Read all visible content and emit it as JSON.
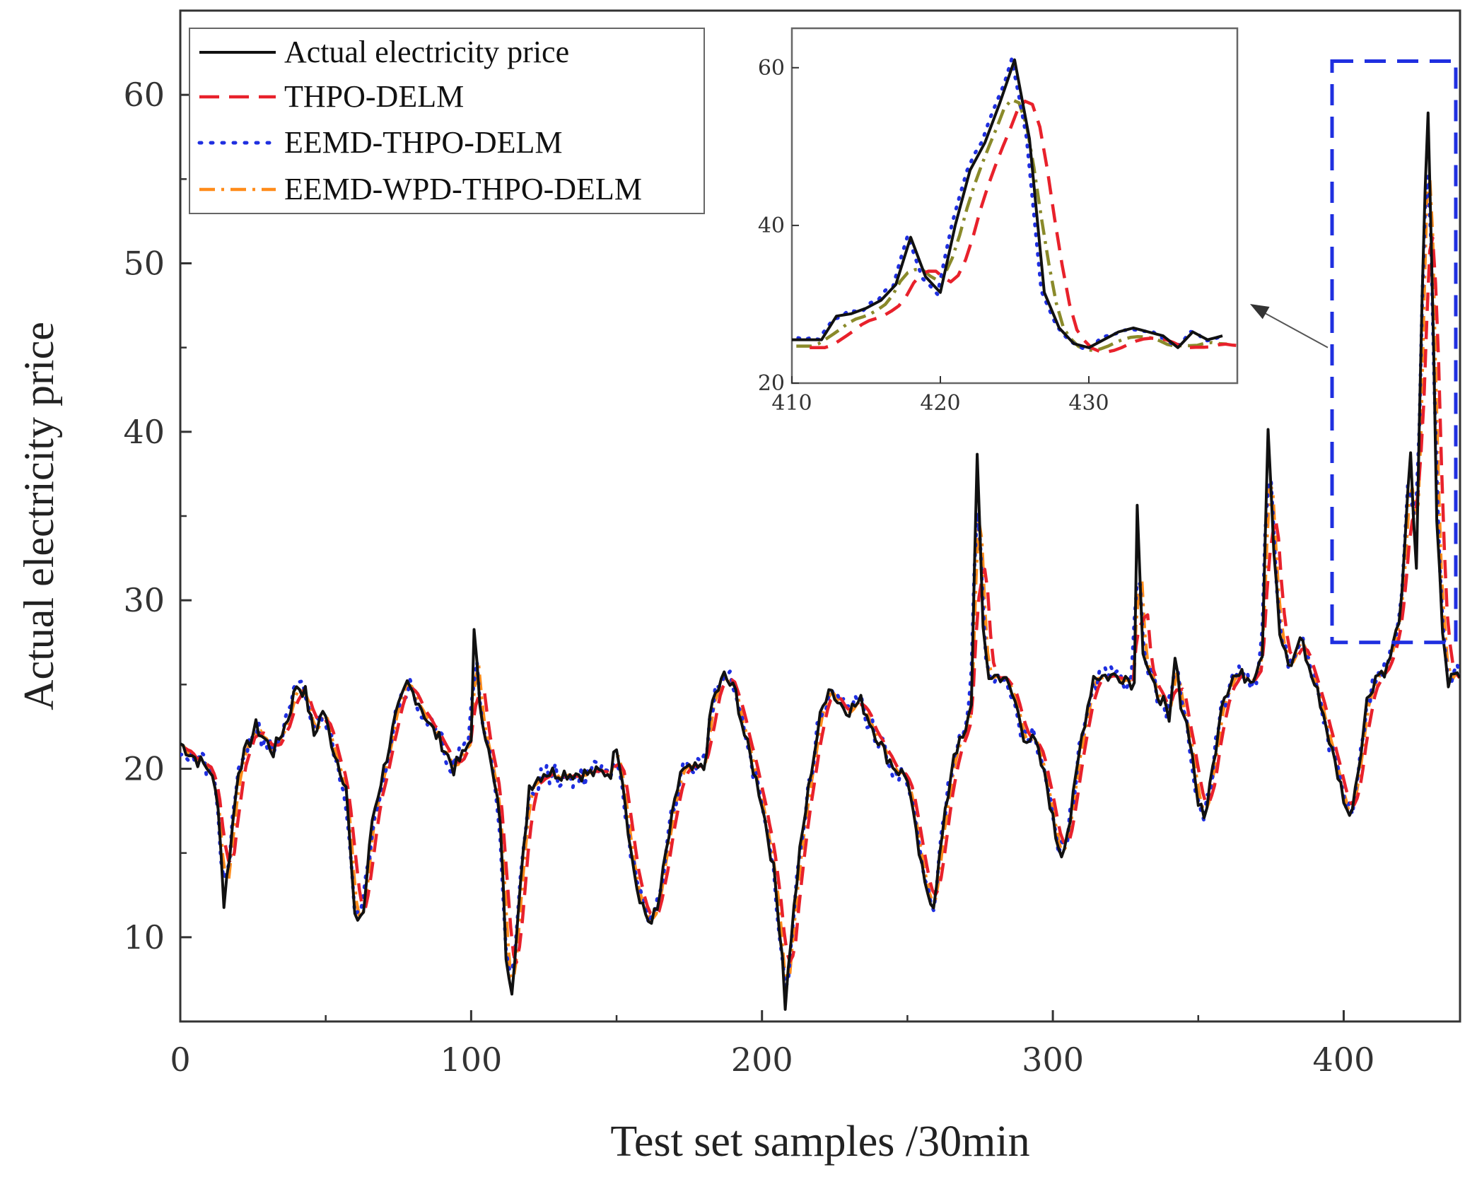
{
  "chart_data": {
    "type": "line",
    "title": "",
    "xlabel": "Test set samples /30min",
    "ylabel": "Actual electricity price",
    "xlim": [
      0,
      440
    ],
    "ylim": [
      5,
      65
    ],
    "xticks": [
      0,
      100,
      200,
      300,
      400
    ],
    "yticks": [
      10,
      20,
      30,
      40,
      50,
      60
    ],
    "legend_position": "top-left",
    "series": [
      {
        "name": "Actual electricity price",
        "color": "#111111",
        "style": "solid"
      },
      {
        "name": "THPO-DELM",
        "color": "#e8212b",
        "style": "dashed"
      },
      {
        "name": "EEMD-THPO-DELM",
        "color": "#1f2fe0",
        "style": "dotted"
      },
      {
        "name": "EEMD-WPD-THPO-DELM",
        "color": "#ff8c1a",
        "style": "dashdot"
      }
    ],
    "actual_keypoints": [
      [
        0,
        21.5
      ],
      [
        6,
        20.5
      ],
      [
        10,
        20
      ],
      [
        13,
        18
      ],
      [
        15,
        12
      ],
      [
        17,
        15
      ],
      [
        20,
        20
      ],
      [
        26,
        22.5
      ],
      [
        32,
        21
      ],
      [
        37,
        23
      ],
      [
        40,
        25
      ],
      [
        43,
        24.5
      ],
      [
        46,
        22
      ],
      [
        49,
        23.5
      ],
      [
        53,
        21
      ],
      [
        57,
        19
      ],
      [
        60,
        11
      ],
      [
        63,
        11.5
      ],
      [
        66,
        17
      ],
      [
        70,
        20
      ],
      [
        74,
        23
      ],
      [
        78,
        25
      ],
      [
        82,
        24
      ],
      [
        86,
        22.5
      ],
      [
        90,
        21.5
      ],
      [
        94,
        20
      ],
      [
        98,
        21
      ],
      [
        100,
        22
      ],
      [
        101,
        28
      ],
      [
        103,
        24
      ],
      [
        107,
        20
      ],
      [
        110,
        17
      ],
      [
        112,
        9
      ],
      [
        114,
        7
      ],
      [
        117,
        13
      ],
      [
        120,
        19
      ],
      [
        125,
        19.8
      ],
      [
        140,
        19.7
      ],
      [
        148,
        19.8
      ],
      [
        150,
        21.5
      ],
      [
        152,
        19.5
      ],
      [
        155,
        15
      ],
      [
        158,
        12
      ],
      [
        161,
        11
      ],
      [
        164,
        11.5
      ],
      [
        167,
        15
      ],
      [
        172,
        19.8
      ],
      [
        180,
        20
      ],
      [
        183,
        24
      ],
      [
        187,
        25.5
      ],
      [
        191,
        24.5
      ],
      [
        194,
        22
      ],
      [
        197,
        20
      ],
      [
        200,
        18
      ],
      [
        204,
        14
      ],
      [
        207,
        9
      ],
      [
        208,
        6
      ],
      [
        210,
        10
      ],
      [
        213,
        15
      ],
      [
        217,
        20
      ],
      [
        220,
        23
      ],
      [
        223,
        25
      ],
      [
        226,
        24
      ],
      [
        230,
        23.5
      ],
      [
        234,
        24
      ],
      [
        238,
        22.5
      ],
      [
        242,
        21
      ],
      [
        246,
        20
      ],
      [
        250,
        19.5
      ],
      [
        253,
        16
      ],
      [
        256,
        13
      ],
      [
        259,
        12
      ],
      [
        262,
        16
      ],
      [
        266,
        21
      ],
      [
        270,
        22
      ],
      [
        272,
        24
      ],
      [
        274,
        39
      ],
      [
        276,
        28
      ],
      [
        278,
        25.5
      ],
      [
        283,
        25.5
      ],
      [
        287,
        24
      ],
      [
        290,
        22
      ],
      [
        294,
        21.5
      ],
      [
        298,
        19
      ],
      [
        301,
        16
      ],
      [
        303,
        15
      ],
      [
        306,
        17
      ],
      [
        310,
        22
      ],
      [
        314,
        25.5
      ],
      [
        325,
        25.5
      ],
      [
        328,
        25
      ],
      [
        329,
        36
      ],
      [
        331,
        27
      ],
      [
        334,
        25
      ],
      [
        338,
        24
      ],
      [
        340,
        22.5
      ],
      [
        342,
        26.5
      ],
      [
        344,
        24
      ],
      [
        347,
        22
      ],
      [
        350,
        18
      ],
      [
        352,
        17
      ],
      [
        355,
        20
      ],
      [
        358,
        24
      ],
      [
        362,
        25.5
      ],
      [
        369,
        25.5
      ],
      [
        372,
        27
      ],
      [
        374,
        40.5
      ],
      [
        376,
        33
      ],
      [
        378,
        28
      ],
      [
        381,
        26
      ],
      [
        383,
        26.5
      ],
      [
        385,
        28
      ],
      [
        388,
        26
      ],
      [
        392,
        24
      ],
      [
        396,
        21
      ],
      [
        399,
        19
      ],
      [
        402,
        17
      ],
      [
        405,
        20
      ],
      [
        408,
        24
      ],
      [
        411,
        25.5
      ],
      [
        415,
        26
      ],
      [
        418,
        28
      ],
      [
        420,
        30
      ],
      [
        422,
        36
      ],
      [
        423,
        39
      ],
      [
        424,
        35
      ],
      [
        425,
        32
      ],
      [
        426,
        40
      ],
      [
        427,
        48
      ],
      [
        428,
        54
      ],
      [
        429,
        59
      ],
      [
        430,
        52
      ],
      [
        431,
        44
      ],
      [
        432,
        35
      ],
      [
        434,
        28
      ],
      [
        436,
        25
      ],
      [
        438,
        26
      ],
      [
        440,
        25.5
      ]
    ],
    "inset": {
      "xlim": [
        410,
        440
      ],
      "ylim": [
        20,
        65
      ],
      "xticks": [
        410,
        420,
        430
      ],
      "yticks": [
        20,
        40,
        60
      ],
      "actual_keypoints": [
        [
          410,
          25.5
        ],
        [
          412,
          25.5
        ],
        [
          413,
          28.5
        ],
        [
          414,
          28.8
        ],
        [
          415,
          29.5
        ],
        [
          416,
          30.5
        ],
        [
          417,
          32.5
        ],
        [
          418,
          38.5
        ],
        [
          419,
          33.5
        ],
        [
          420,
          31.5
        ],
        [
          421,
          40
        ],
        [
          422,
          47
        ],
        [
          423,
          50.5
        ],
        [
          424,
          55.5
        ],
        [
          425,
          61
        ],
        [
          426,
          51
        ],
        [
          427,
          31.5
        ],
        [
          428,
          27
        ],
        [
          429,
          25
        ],
        [
          430,
          24.5
        ],
        [
          431,
          25.5
        ],
        [
          432,
          26.5
        ],
        [
          433,
          27
        ],
        [
          434,
          26.5
        ],
        [
          435,
          26
        ],
        [
          436,
          24.5
        ],
        [
          437,
          26.5
        ],
        [
          438,
          25.5
        ],
        [
          439,
          26
        ]
      ]
    },
    "zoom_box": {
      "x": [
        396,
        440
      ],
      "y": [
        27.5,
        62
      ]
    }
  }
}
